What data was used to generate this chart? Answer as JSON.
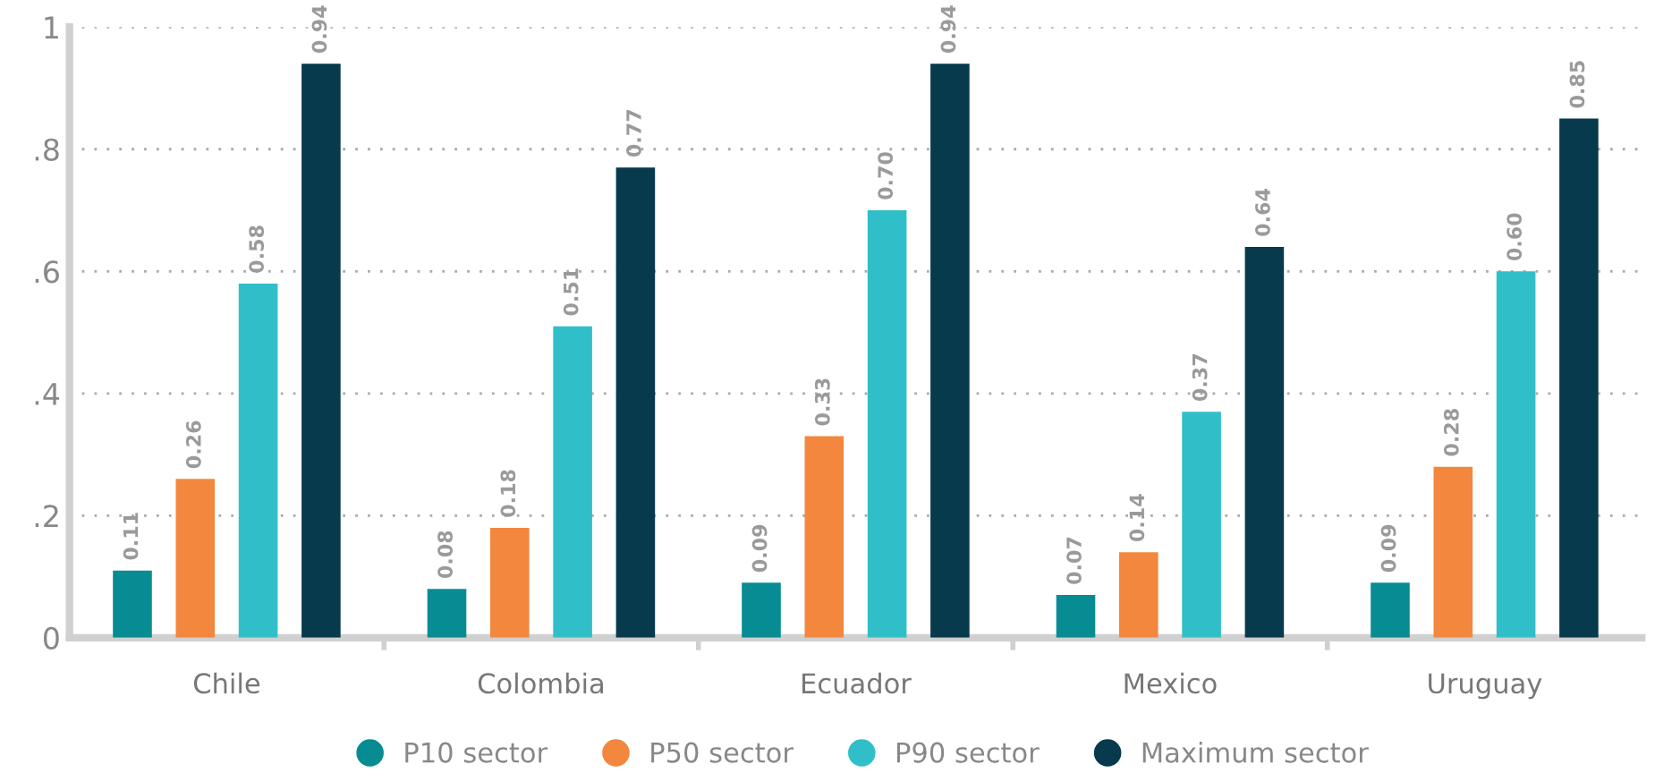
{
  "chart_data": {
    "type": "bar",
    "categories": [
      "Chile",
      "Colombia",
      "Ecuador",
      "Mexico",
      "Uruguay"
    ],
    "series": [
      {
        "name": "P10 sector",
        "color": "#088c94",
        "values": [
          0.11,
          0.08,
          0.09,
          0.07,
          0.09
        ]
      },
      {
        "name": "P50 sector",
        "color": "#f3873e",
        "values": [
          0.26,
          0.18,
          0.33,
          0.14,
          0.28
        ]
      },
      {
        "name": "P90 sector",
        "color": "#30bfc8",
        "values": [
          0.58,
          0.51,
          0.7,
          0.37,
          0.6
        ]
      },
      {
        "name": "Maximum sector",
        "color": "#063a4c",
        "values": [
          0.94,
          0.77,
          0.94,
          0.64,
          0.85
        ]
      }
    ],
    "value_labels": [
      [
        "0.11",
        "0.08",
        "0.09",
        "0.07",
        "0.09"
      ],
      [
        "0.26",
        "0.18",
        "0.33",
        "0.14",
        "0.28"
      ],
      [
        "0.58",
        "0.51",
        "0.70",
        "0.37",
        "0.60"
      ],
      [
        "0.94",
        "0.77",
        "0.94",
        "0.64",
        "0.85"
      ]
    ],
    "ylim": [
      0,
      1
    ],
    "yticks": [
      {
        "value": 0,
        "label": "0"
      },
      {
        "value": 0.2,
        "label": ".2"
      },
      {
        "value": 0.4,
        "label": ".4"
      },
      {
        "value": 0.6,
        "label": ".6"
      },
      {
        "value": 0.8,
        "label": ".8"
      },
      {
        "value": 1,
        "label": "1"
      }
    ],
    "grid": "y",
    "legend": "bottom"
  }
}
